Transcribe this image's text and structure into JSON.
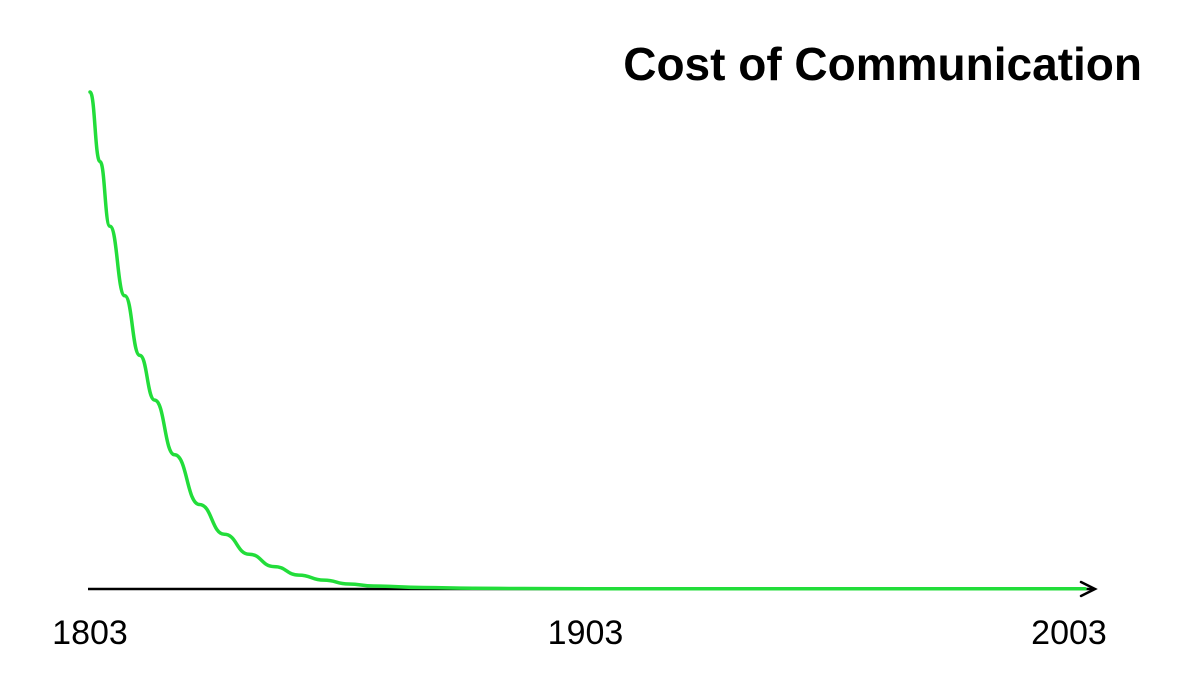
{
  "chart_data": {
    "type": "line",
    "title": "Cost of Communication",
    "xlabel": "",
    "ylabel": "",
    "x_ticks": [
      "1803",
      "1903",
      "2003"
    ],
    "xlim": [
      1803,
      2003
    ],
    "ylim": [
      0,
      100
    ],
    "grid": false,
    "legend": "none",
    "series": [
      {
        "color": "#22dd3a",
        "x": [
          1803,
          1805,
          1807,
          1810,
          1813,
          1816,
          1820,
          1825,
          1830,
          1835,
          1840,
          1845,
          1850,
          1855,
          1860,
          1870,
          1880,
          1890,
          1903,
          1920,
          1940,
          1960,
          1980,
          2003
        ],
        "y": [
          100,
          86,
          73,
          59,
          47,
          38,
          27,
          17,
          11,
          7,
          4.5,
          2.8,
          1.8,
          1.0,
          0.6,
          0.3,
          0.15,
          0.1,
          0.05,
          0.05,
          0.05,
          0.05,
          0.05,
          0.05
        ]
      }
    ],
    "axis_color": "#000000"
  }
}
